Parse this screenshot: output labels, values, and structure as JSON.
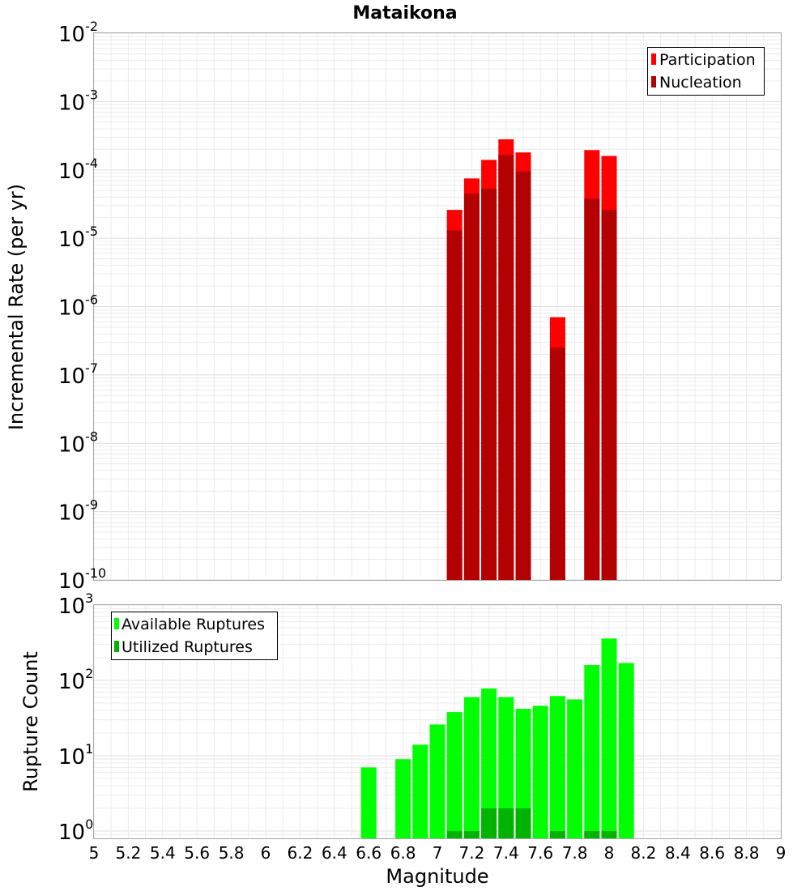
{
  "chart_data": [
    {
      "type": "bar",
      "title": "Mataikona",
      "xlabel": "",
      "ylabel": "Incremental Rate (per yr)",
      "yscale": "log",
      "ylim": [
        1e-10,
        0.01
      ],
      "xlim": [
        5,
        9
      ],
      "grid": true,
      "legend_position": "top-right",
      "y_tick_exponents": [
        "-10",
        "-9",
        "-8",
        "-7",
        "-6",
        "-5",
        "-4",
        "-3",
        "-2"
      ],
      "bar_centers": [
        7.1,
        7.2,
        7.3,
        7.4,
        7.5,
        7.7,
        7.9,
        8.0
      ],
      "series": [
        {
          "name": "Participation",
          "color": "#ff0000",
          "values": [
            2.6e-05,
            7.5e-05,
            0.00014,
            0.00028,
            0.00018,
            7e-07,
            0.000195,
            0.00016
          ]
        },
        {
          "name": "Nucleation",
          "color": "#b30000",
          "values": [
            1.3e-05,
            4.5e-05,
            5.3e-05,
            0.000165,
            9.5e-05,
            2.5e-07,
            3.8e-05,
            2.6e-05
          ]
        }
      ]
    },
    {
      "type": "bar",
      "title": "",
      "xlabel": "Magnitude",
      "ylabel": "Rupture Count",
      "yscale": "log",
      "ylim": [
        0.8,
        1000
      ],
      "xlim": [
        5,
        9
      ],
      "grid": true,
      "legend_position": "top-left",
      "y_tick_exponents": [
        "0",
        "1",
        "2",
        "3"
      ],
      "x_ticks": [
        "5",
        "5.2",
        "5.4",
        "5.6",
        "5.8",
        "6",
        "6.2",
        "6.4",
        "6.6",
        "6.8",
        "7",
        "7.2",
        "7.4",
        "7.6",
        "7.8",
        "8",
        "8.2",
        "8.4",
        "8.6",
        "8.8",
        "9"
      ],
      "series": [
        {
          "name": "Available Ruptures",
          "color": "#00ff00",
          "x": [
            6.6,
            6.8,
            6.9,
            7.0,
            7.1,
            7.2,
            7.3,
            7.4,
            7.5,
            7.6,
            7.7,
            7.8,
            7.9,
            8.0,
            8.1
          ],
          "values": [
            7,
            9,
            14,
            26,
            38,
            60,
            78,
            60,
            42,
            46,
            62,
            56,
            160,
            360,
            170
          ]
        },
        {
          "name": "Utilized Ruptures",
          "color": "#00b300",
          "x": [
            7.1,
            7.2,
            7.3,
            7.4,
            7.5,
            7.7,
            7.9,
            8.0
          ],
          "values": [
            1,
            1,
            2,
            2,
            2,
            1,
            1,
            1
          ]
        }
      ]
    }
  ]
}
